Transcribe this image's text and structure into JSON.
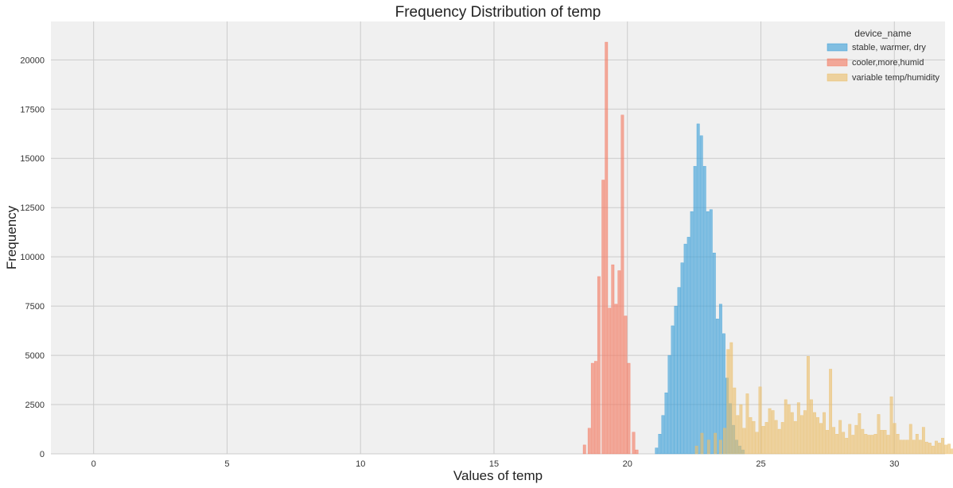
{
  "chart_data": {
    "type": "bar",
    "title": "Frequency Distribution of temp",
    "xlabel": "Values of temp",
    "ylabel": "Frequency",
    "xlim": [
      -1.6,
      31.9
    ],
    "ylim": [
      0,
      21950
    ],
    "xticks": [
      0,
      5,
      10,
      15,
      20,
      25,
      30
    ],
    "yticks": [
      0,
      2500,
      5000,
      7500,
      10000,
      12500,
      15000,
      17500,
      20000
    ],
    "grid": true,
    "bin_width": 0.12,
    "legend": {
      "title": "device_name",
      "position": "top-right"
    },
    "series": [
      {
        "name": "stable, warmer, dry",
        "color": "#3ca0d8",
        "bins": [
          [
            21.1,
            300
          ],
          [
            21.22,
            1000
          ],
          [
            21.34,
            1950
          ],
          [
            21.46,
            3100
          ],
          [
            21.58,
            5000
          ],
          [
            21.7,
            6500
          ],
          [
            21.82,
            7500
          ],
          [
            21.94,
            8450
          ],
          [
            22.06,
            9700
          ],
          [
            22.18,
            10650
          ],
          [
            22.3,
            11000
          ],
          [
            22.42,
            12300
          ],
          [
            22.54,
            14600
          ],
          [
            22.66,
            16750
          ],
          [
            22.78,
            16150
          ],
          [
            22.9,
            14600
          ],
          [
            23.02,
            12300
          ],
          [
            23.14,
            12400
          ],
          [
            23.26,
            10200
          ],
          [
            23.38,
            6850
          ],
          [
            23.5,
            7600
          ],
          [
            23.62,
            6100
          ],
          [
            23.74,
            3850
          ],
          [
            23.86,
            2550
          ],
          [
            23.98,
            1450
          ],
          [
            24.1,
            700
          ],
          [
            24.22,
            400
          ],
          [
            24.34,
            200
          ]
        ]
      },
      {
        "name": "cooler,more,humid",
        "color": "#f47a63",
        "bins": [
          [
            18.4,
            450
          ],
          [
            18.58,
            1300
          ],
          [
            18.7,
            4600
          ],
          [
            18.82,
            4700
          ],
          [
            18.94,
            9000
          ],
          [
            19.1,
            13900
          ],
          [
            19.22,
            20900
          ],
          [
            19.34,
            7400
          ],
          [
            19.46,
            9600
          ],
          [
            19.58,
            7600
          ],
          [
            19.7,
            9300
          ],
          [
            19.82,
            17200
          ],
          [
            19.94,
            7000
          ],
          [
            20.06,
            4600
          ],
          [
            20.24,
            1100
          ],
          [
            20.36,
            200
          ]
        ]
      },
      {
        "name": "variable temp/humidity",
        "color": "#ebbe6a",
        "bins": [
          [
            22.6,
            400
          ],
          [
            22.8,
            1050
          ],
          [
            23.05,
            700
          ],
          [
            23.3,
            1050
          ],
          [
            23.5,
            700
          ],
          [
            23.65,
            1300
          ],
          [
            23.78,
            5300
          ],
          [
            23.9,
            5650
          ],
          [
            24.02,
            3350
          ],
          [
            24.14,
            1950
          ],
          [
            24.26,
            2500
          ],
          [
            24.38,
            1300
          ],
          [
            24.5,
            3050
          ],
          [
            24.62,
            1850
          ],
          [
            24.74,
            1650
          ],
          [
            24.86,
            1100
          ],
          [
            24.98,
            3400
          ],
          [
            25.1,
            1400
          ],
          [
            25.22,
            1600
          ],
          [
            25.34,
            2300
          ],
          [
            25.46,
            2200
          ],
          [
            25.58,
            1700
          ],
          [
            25.7,
            1250
          ],
          [
            25.82,
            1600
          ],
          [
            25.94,
            2750
          ],
          [
            26.06,
            2500
          ],
          [
            26.18,
            2100
          ],
          [
            26.3,
            1650
          ],
          [
            26.42,
            2600
          ],
          [
            26.54,
            1950
          ],
          [
            26.66,
            2200
          ],
          [
            26.78,
            4950
          ],
          [
            26.9,
            2750
          ],
          [
            27.02,
            2100
          ],
          [
            27.14,
            1850
          ],
          [
            27.26,
            1550
          ],
          [
            27.38,
            2100
          ],
          [
            27.5,
            1200
          ],
          [
            27.62,
            4300
          ],
          [
            27.74,
            1350
          ],
          [
            27.86,
            1000
          ],
          [
            27.98,
            1700
          ],
          [
            28.1,
            1100
          ],
          [
            28.22,
            800
          ],
          [
            28.34,
            1500
          ],
          [
            28.46,
            950
          ],
          [
            28.58,
            1450
          ],
          [
            28.7,
            2050
          ],
          [
            28.82,
            1250
          ],
          [
            28.94,
            1000
          ],
          [
            29.06,
            950
          ],
          [
            29.18,
            950
          ],
          [
            29.3,
            1000
          ],
          [
            29.42,
            2000
          ],
          [
            29.54,
            1200
          ],
          [
            29.66,
            1200
          ],
          [
            29.78,
            950
          ],
          [
            29.9,
            2900
          ],
          [
            30.02,
            1550
          ],
          [
            30.14,
            1000
          ],
          [
            30.26,
            700
          ],
          [
            30.38,
            700
          ],
          [
            30.5,
            700
          ],
          [
            30.62,
            1500
          ],
          [
            30.74,
            700
          ],
          [
            30.86,
            1000
          ],
          [
            30.98,
            700
          ],
          [
            31.1,
            1350
          ],
          [
            31.22,
            600
          ],
          [
            31.34,
            550
          ],
          [
            31.46,
            400
          ],
          [
            31.58,
            650
          ],
          [
            31.7,
            550
          ],
          [
            31.82,
            800
          ],
          [
            31.94,
            450
          ],
          [
            32.06,
            500
          ],
          [
            32.18,
            250
          ]
        ]
      }
    ]
  }
}
